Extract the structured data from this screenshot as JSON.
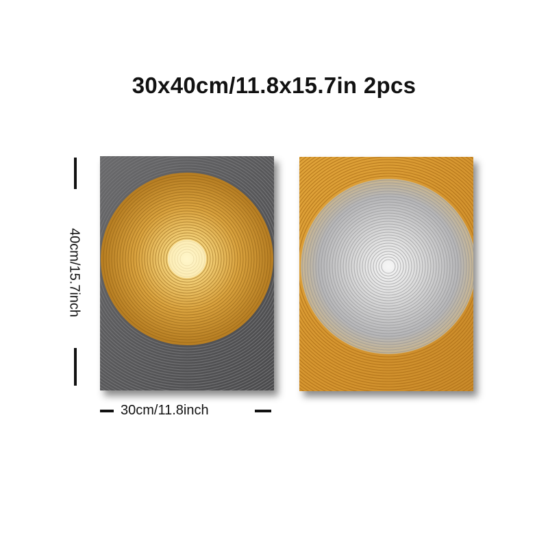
{
  "header": {
    "title": "30x40cm/11.8x15.7in 2pcs"
  },
  "dimensions": {
    "height_label": "40cm/15.7inch",
    "width_label": "30cm/11.8inch"
  },
  "panels": [
    {
      "name": "Gray and gold concentric circle panel",
      "background_color": "#58585a",
      "ring_color": "#d8a440",
      "center_color": "#fff6c8"
    },
    {
      "name": "Gold and silver concentric circle panel",
      "background_color": "#d99a32",
      "ring_color": "#b8b8ba",
      "center_color": "#f4f4f4"
    }
  ],
  "colors": {
    "text": "#111111",
    "page_background": "#ffffff"
  }
}
